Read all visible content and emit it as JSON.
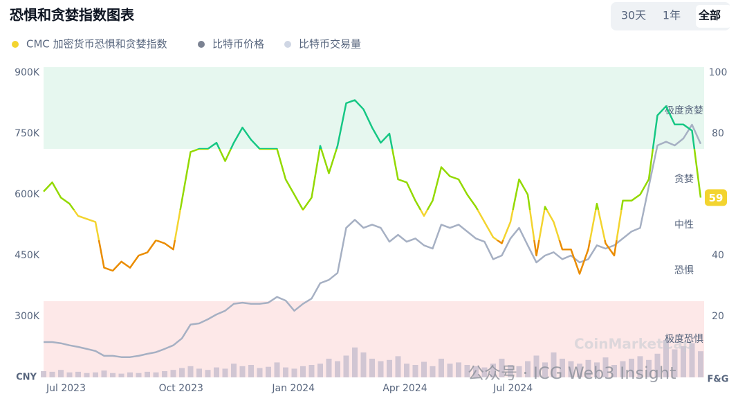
{
  "chart_data": {
    "type": "line",
    "title": "恐惧和贪婪指数图表",
    "tabs": [
      {
        "label": "30天",
        "active": false
      },
      {
        "label": "1年",
        "active": false
      },
      {
        "label": "全部",
        "active": true
      }
    ],
    "y_label": "CNY",
    "y2_label": "F&G",
    "watermarks": [
      "CoinMarketCap",
      "公众号 · ICG Web3 Insight"
    ],
    "x": [
      0,
      1,
      2,
      3,
      4,
      5,
      6,
      7,
      8,
      9,
      10,
      11,
      12,
      13,
      14,
      15,
      16,
      17,
      18,
      19,
      20,
      21,
      22,
      23,
      24,
      25,
      26,
      27,
      28,
      29,
      30,
      31,
      32,
      33,
      34,
      35,
      36,
      37,
      38,
      39,
      40,
      41,
      42,
      43,
      44,
      45,
      46,
      47,
      48,
      49,
      50,
      51,
      52,
      53,
      54,
      55,
      56,
      57,
      58,
      59,
      60,
      61,
      62,
      63,
      64,
      65,
      66,
      67,
      68,
      69,
      70,
      71,
      72,
      73,
      74,
      75,
      76
    ],
    "xlim": [
      0,
      76.4
    ],
    "xticks": [
      {
        "value": 2.6,
        "label": "Jul 2023"
      },
      {
        "value": 15.9,
        "label": "Oct 2023"
      },
      {
        "value": 28.9,
        "label": "Jan 2024"
      },
      {
        "value": 41.8,
        "label": "Apr 2024"
      },
      {
        "value": 54.3,
        "label": "Jul 2024"
      }
    ],
    "ylim": [
      150000,
      900000
    ],
    "yticks": [
      {
        "value": 300000,
        "label": "300K"
      },
      {
        "value": 450000,
        "label": "450K"
      },
      {
        "value": 600000,
        "label": "600K"
      },
      {
        "value": 750000,
        "label": "750K"
      },
      {
        "value": 900000,
        "label": "900K"
      }
    ],
    "y2lim": [
      0,
      100
    ],
    "y2ticks": [
      20,
      40,
      80,
      100
    ],
    "grid": false,
    "zones": [
      {
        "label": "极度恐惧",
        "from": 0,
        "to": 25,
        "color": "#ea3943",
        "background": "#fde8e8"
      },
      {
        "label": "恐惧",
        "from": 25,
        "to": 45,
        "color": "#ea8c00"
      },
      {
        "label": "中性",
        "from": 45,
        "to": 55,
        "color": "#f3d42f"
      },
      {
        "label": "贪婪",
        "from": 55,
        "to": 75,
        "color": "#93d900"
      },
      {
        "label": "极度贪婪",
        "from": 75,
        "to": 100,
        "color": "#16c784",
        "background": "#e6f7ef"
      }
    ],
    "series": [
      {
        "name": "CMC 加密货币恐惧和贪婪指数",
        "color": "#f3d42f",
        "axis": "y2",
        "values": [
          61,
          64,
          59,
          57,
          53,
          52,
          51,
          36,
          35,
          38,
          36,
          40,
          41,
          45,
          44,
          42,
          58,
          74,
          75,
          75,
          77,
          71,
          77,
          82,
          78,
          75,
          75,
          75,
          65,
          60,
          55,
          59,
          76,
          67,
          76,
          90,
          91,
          88,
          82,
          77,
          80,
          65,
          64,
          58,
          53,
          58,
          69,
          66,
          65,
          60,
          56,
          51,
          46,
          44,
          51,
          65,
          60,
          40,
          56,
          51,
          42,
          42,
          34,
          42,
          57,
          44,
          40,
          58,
          58,
          60,
          65,
          86,
          89,
          83,
          83,
          81,
          59
        ]
      },
      {
        "name": "比特币价格",
        "color": "#a6b0c3",
        "values": [
          237000,
          237000,
          234000,
          229000,
          225000,
          220000,
          215000,
          203000,
          203000,
          200000,
          200000,
          203000,
          208000,
          212000,
          220000,
          229000,
          246000,
          280000,
          283000,
          293000,
          305000,
          314000,
          331000,
          334000,
          331000,
          331000,
          334000,
          348000,
          339000,
          314000,
          331000,
          344000,
          382000,
          390000,
          407000,
          518000,
          538000,
          518000,
          526000,
          518000,
          484000,
          501000,
          484000,
          492000,
          475000,
          467000,
          526000,
          518000,
          526000,
          509000,
          492000,
          484000,
          441000,
          450000,
          492000,
          518000,
          475000,
          433000,
          450000,
          458000,
          441000,
          450000,
          433000,
          441000,
          475000,
          467000,
          475000,
          492000,
          509000,
          518000,
          620000,
          721000,
          730000,
          721000,
          738000,
          772000,
          725000
        ]
      }
    ],
    "volume": {
      "name": "比特币交易量",
      "color": "#c9bfcf",
      "ylim": [
        0,
        100
      ],
      "values": [
        10,
        9,
        12,
        8,
        9,
        7,
        8,
        11,
        7,
        6,
        8,
        7,
        9,
        8,
        10,
        12,
        15,
        18,
        14,
        12,
        16,
        14,
        22,
        18,
        20,
        15,
        17,
        24,
        16,
        14,
        18,
        20,
        22,
        30,
        26,
        35,
        48,
        40,
        30,
        26,
        28,
        34,
        22,
        20,
        25,
        18,
        30,
        22,
        24,
        20,
        18,
        16,
        22,
        30,
        20,
        18,
        26,
        35,
        24,
        40,
        30,
        26,
        22,
        28,
        24,
        32,
        20,
        26,
        30,
        34,
        28,
        38,
        60,
        45,
        50,
        55,
        42
      ]
    }
  }
}
